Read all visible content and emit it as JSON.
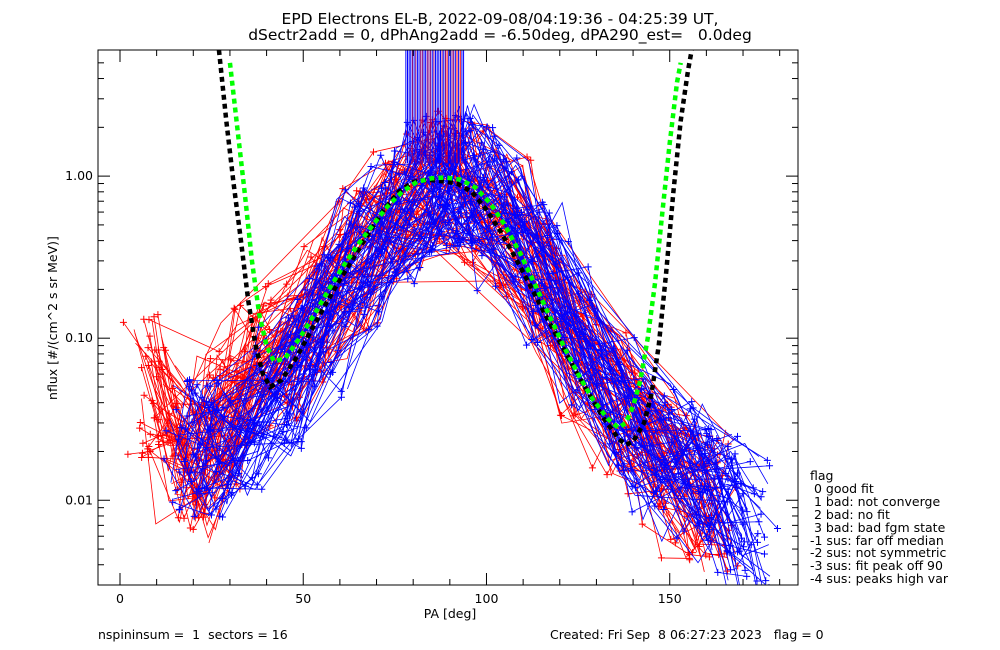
{
  "title_line1": "EPD Electrons EL-B, 2022-09-08/04:19:36 - 04:25:39 UT,",
  "title_line2": "dSectr2add = 0, dPhAng2add = -6.50deg, dPA290_est=   0.0deg",
  "footer_left": "nspininsum =  1  sectors = 16",
  "footer_right": "Created: Fri Sep  8 06:27:23 2023   flag = 0",
  "legend": {
    "title": "flag",
    "items": [
      " 0 good fit",
      " 1 bad: not converge",
      " 2 bad: no fit",
      " 3 bad: bad fgm state",
      "-1 sus: far off median",
      "-2 sus: not symmetric",
      "-3 sus: fit peak off 90",
      "-4 sus: peaks high var"
    ]
  },
  "colors": {
    "red": "#ff0000",
    "blue": "#0000ff",
    "fit_black": "#000000",
    "fit_green": "#00ff00",
    "axis": "#000000"
  },
  "chart_data": {
    "type": "line",
    "title": "EPD Electrons EL-B, 2022-09-08/04:19:36 - 04:25:39 UT,",
    "subtitle": "dSectr2add = 0, dPhAng2add = -6.50deg, dPA290_est=   0.0deg",
    "xlabel": "PA [deg]",
    "ylabel": "nflux [#/(cm^2 s sr MeV)]",
    "xlim": [
      -6,
      185
    ],
    "ylim": [
      0.003,
      6
    ],
    "yscale": "log",
    "x_ticks": [
      0,
      50,
      100,
      150
    ],
    "x_tick_labels": [
      "0",
      "50",
      "100",
      "150"
    ],
    "y_ticks": [
      0.01,
      0.1,
      1.0
    ],
    "y_tick_labels": [
      "0.01",
      "0.10",
      "1.00"
    ],
    "series": [
      {
        "color": "#ff0000",
        "marker": "+",
        "description_count": "many",
        "shape": "peaked",
        "peak_pa": 84,
        "peak_value": 0.9,
        "sample_values": {
          "pa": [
            8,
            16,
            22,
            28,
            35,
            45,
            55,
            65,
            75,
            84,
            95,
            105,
            115,
            125,
            135,
            145,
            155,
            162
          ],
          "nflux": [
            0.05,
            0.02,
            0.015,
            0.03,
            0.06,
            0.08,
            0.15,
            0.3,
            0.6,
            0.9,
            0.8,
            0.5,
            0.2,
            0.08,
            0.04,
            0.02,
            0.012,
            0.01
          ]
        }
      },
      {
        "color": "#0000ff",
        "marker": "+",
        "description_count": "many",
        "shape": "peaked",
        "peak_pa": 90,
        "peak_value": 1.0,
        "sample_values": {
          "pa": [
            18,
            25,
            35,
            45,
            55,
            65,
            75,
            85,
            90,
            95,
            105,
            115,
            125,
            135,
            145,
            155,
            163,
            172
          ],
          "nflux": [
            0.02,
            0.02,
            0.03,
            0.05,
            0.12,
            0.3,
            0.6,
            0.9,
            1.0,
            0.9,
            0.55,
            0.25,
            0.1,
            0.04,
            0.02,
            0.015,
            0.01,
            0.007
          ]
        }
      },
      {
        "color": "#000000",
        "style": "dashed",
        "pa": [
          27,
          29,
          31,
          33,
          35,
          37,
          39,
          41,
          44,
          48,
          52,
          56,
          60,
          64,
          68,
          72,
          76,
          80,
          84,
          88,
          92,
          96,
          100,
          104,
          108,
          112,
          116,
          120,
          124,
          128,
          132,
          136,
          138,
          140,
          143,
          145,
          147,
          149,
          151,
          153,
          155,
          156
        ],
        "nflux": [
          6.0,
          2.2,
          0.9,
          0.4,
          0.17,
          0.09,
          0.06,
          0.05,
          0.055,
          0.075,
          0.11,
          0.16,
          0.23,
          0.32,
          0.45,
          0.62,
          0.8,
          0.92,
          0.95,
          0.93,
          0.9,
          0.8,
          0.62,
          0.45,
          0.31,
          0.21,
          0.14,
          0.095,
          0.065,
          0.045,
          0.032,
          0.024,
          0.022,
          0.023,
          0.03,
          0.045,
          0.09,
          0.25,
          0.8,
          2.2,
          4.5,
          6.0
        ]
      },
      {
        "color": "#00ff00",
        "style": "dashed",
        "pa": [
          30,
          32,
          34,
          36,
          38,
          40,
          42,
          45,
          49,
          53,
          57,
          61,
          65,
          69,
          73,
          77,
          81,
          85,
          89,
          93,
          97,
          101,
          105,
          109,
          113,
          117,
          121,
          125,
          129,
          133,
          136,
          138,
          140,
          142,
          144,
          146,
          148,
          150,
          152,
          153
        ],
        "nflux": [
          5.0,
          2.0,
          0.8,
          0.3,
          0.14,
          0.09,
          0.072,
          0.075,
          0.1,
          0.14,
          0.2,
          0.28,
          0.38,
          0.5,
          0.65,
          0.8,
          0.92,
          0.97,
          0.98,
          0.95,
          0.85,
          0.68,
          0.5,
          0.34,
          0.22,
          0.14,
          0.09,
          0.06,
          0.042,
          0.032,
          0.028,
          0.03,
          0.038,
          0.055,
          0.1,
          0.22,
          0.6,
          1.6,
          3.8,
          5.0
        ]
      }
    ],
    "vertical_lines": {
      "pa_range": [
        78,
        94
      ],
      "from": 1.2,
      "to": 6.0,
      "colors": [
        "#0000ff",
        "#ff0000",
        "#800080"
      ]
    }
  }
}
